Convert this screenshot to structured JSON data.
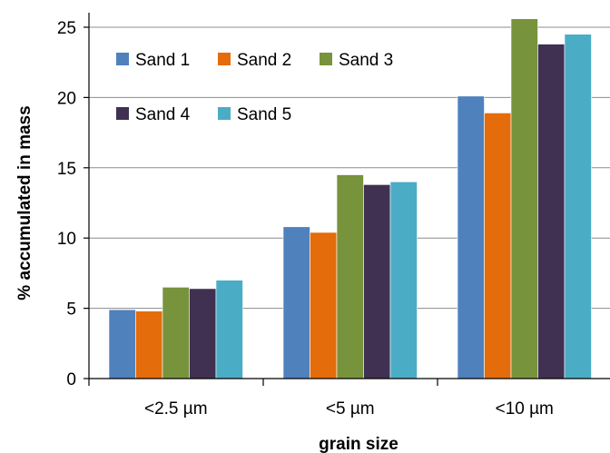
{
  "chart_data": {
    "type": "bar",
    "categories": [
      "<2.5 µm",
      "<5 µm",
      "<10 µm"
    ],
    "series": [
      {
        "name": "Sand 1",
        "color": "#4f81bd",
        "values": [
          4.9,
          10.8,
          20.1
        ]
      },
      {
        "name": "Sand 2",
        "color": "#e46c0a",
        "values": [
          4.8,
          10.4,
          18.9
        ]
      },
      {
        "name": "Sand 3",
        "color": "#77933c",
        "values": [
          6.5,
          14.5,
          25.6
        ]
      },
      {
        "name": "Sand 4",
        "color": "#403152",
        "values": [
          6.4,
          13.8,
          23.8
        ]
      },
      {
        "name": "Sand 5",
        "color": "#4bacc6",
        "values": [
          7.0,
          14.0,
          24.5
        ]
      }
    ],
    "title": "",
    "xlabel": "grain size",
    "ylabel": "% accumulated in mass",
    "ylim": [
      0,
      25
    ],
    "yticks": [
      0,
      5,
      10,
      15,
      20,
      25
    ],
    "grid": true,
    "legend_position": "top-left"
  }
}
